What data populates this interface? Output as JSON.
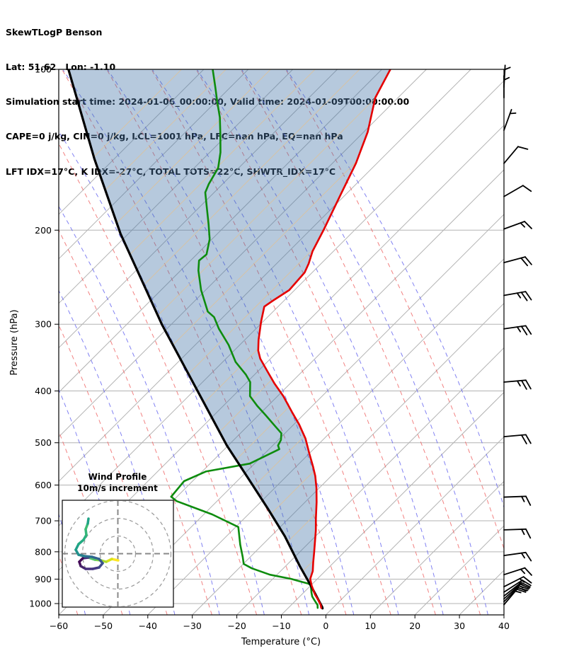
{
  "header": {
    "line1": "SkewTLogP Benson",
    "line2": "Lat: 51.62   Lon: -1.10",
    "line3": "Simulation start time: 2024-01-06_00:00:00, Valid time: 2024-01-09T00:00:00.00",
    "line4": "CAPE=0 j/kg, CIN=0 j/kg, LCL=1001 hPa, LFC=nan hPa, EQ=nan hPa",
    "line5": "LFT IDX=17°C, K IDX=-27°C, TOTAL TOTS=22°C, SHWTR_IDX=17°C"
  },
  "chart_data": {
    "type": "line",
    "variant": "skewt-logp",
    "xlabel": "Temperature (°C)",
    "ylabel": "Pressure (hPa)",
    "xlim": [
      -60,
      40
    ],
    "plim": [
      100,
      1050
    ],
    "x_ticks": [
      -60,
      -50,
      -40,
      -30,
      -20,
      -10,
      0,
      10,
      20,
      30,
      40
    ],
    "p_ticks": [
      100,
      200,
      300,
      400,
      500,
      600,
      700,
      800,
      900,
      1000
    ],
    "skew_deg": 45,
    "isotherm_step_c": 10,
    "grid": true,
    "colors": {
      "temperature": "#e50000",
      "dewpoint": "#0e8c0e",
      "parcel": "#000000",
      "fill": "#4878aa",
      "fill_opacity": 0.4,
      "isotherm": "#b3b3b3",
      "minor_isotherm_tan": "#d7c3a5",
      "dry_adiabat": "#ef6161",
      "moist_adiabat": "#6161ef",
      "barb": "#000000"
    },
    "series": [
      {
        "name": "temperature",
        "points": [
          [
            100,
            -108.1
          ],
          [
            113,
            -105.1
          ],
          [
            131,
            -99.1
          ],
          [
            150,
            -94.7
          ],
          [
            171,
            -91.2
          ],
          [
            199,
            -87.1
          ],
          [
            219,
            -84.7
          ],
          [
            231,
            -82.8
          ],
          [
            240,
            -81.7
          ],
          [
            259,
            -81.2
          ],
          [
            271,
            -82.5
          ],
          [
            278,
            -83.1
          ],
          [
            297,
            -80.4
          ],
          [
            321,
            -76.9
          ],
          [
            336,
            -74.6
          ],
          [
            348,
            -72.3
          ],
          [
            366,
            -68.2
          ],
          [
            387,
            -63.6
          ],
          [
            409,
            -58.7
          ],
          [
            438,
            -53.2
          ],
          [
            462,
            -48.8
          ],
          [
            491,
            -44.2
          ],
          [
            522,
            -40.2
          ],
          [
            555,
            -36.1
          ],
          [
            577,
            -33.6
          ],
          [
            608,
            -30.6
          ],
          [
            646,
            -27.4
          ],
          [
            693,
            -23.9
          ],
          [
            730,
            -21.2
          ],
          [
            800,
            -16.8
          ],
          [
            838,
            -14.6
          ],
          [
            869,
            -12.8
          ],
          [
            899,
            -11.6
          ],
          [
            925,
            -9.8
          ],
          [
            962,
            -7.0
          ],
          [
            984,
            -5.1
          ],
          [
            1006,
            -3.4
          ],
          [
            1019,
            -2.6
          ]
        ]
      },
      {
        "name": "dewpoint",
        "points": [
          [
            100,
            -148.0
          ],
          [
            108,
            -143.4
          ],
          [
            115,
            -139.7
          ],
          [
            123,
            -135.6
          ],
          [
            132,
            -131.8
          ],
          [
            143,
            -127.6
          ],
          [
            153,
            -124.6
          ],
          [
            164,
            -123.1
          ],
          [
            170,
            -122.0
          ],
          [
            181,
            -118.4
          ],
          [
            195,
            -114.1
          ],
          [
            208,
            -110.5
          ],
          [
            222,
            -107.8
          ],
          [
            228,
            -108.1
          ],
          [
            238,
            -106.0
          ],
          [
            259,
            -101.0
          ],
          [
            284,
            -94.7
          ],
          [
            291,
            -92.0
          ],
          [
            306,
            -88.3
          ],
          [
            328,
            -82.5
          ],
          [
            353,
            -77.1
          ],
          [
            373,
            -71.9
          ],
          [
            385,
            -69.3
          ],
          [
            409,
            -66.2
          ],
          [
            426,
            -62.5
          ],
          [
            444,
            -58.4
          ],
          [
            467,
            -53.5
          ],
          [
            480,
            -50.8
          ],
          [
            494,
            -49.4
          ],
          [
            506,
            -48.8
          ],
          [
            514,
            -47.7
          ],
          [
            547,
            -51.1
          ],
          [
            566,
            -59.2
          ],
          [
            590,
            -61.9
          ],
          [
            631,
            -61.3
          ],
          [
            643,
            -59.1
          ],
          [
            681,
            -48.1
          ],
          [
            719,
            -39.4
          ],
          [
            776,
            -35.0
          ],
          [
            818,
            -31.7
          ],
          [
            843,
            -29.9
          ],
          [
            859,
            -27.1
          ],
          [
            883,
            -21.6
          ],
          [
            899,
            -15.9
          ],
          [
            910,
            -13.0
          ],
          [
            918,
            -10.9
          ],
          [
            925,
            -10.0
          ],
          [
            953,
            -8.3
          ],
          [
            970,
            -7.2
          ],
          [
            984,
            -6.0
          ],
          [
            1006,
            -4.1
          ],
          [
            1019,
            -3.4
          ]
        ]
      },
      {
        "name": "parcel",
        "points": [
          [
            100,
            -180.4
          ],
          [
            147,
            -154.5
          ],
          [
            203,
            -131.8
          ],
          [
            301,
            -101.9
          ],
          [
            506,
            -60.3
          ],
          [
            585,
            -47.8
          ],
          [
            662,
            -37.2
          ],
          [
            748,
            -26.9
          ],
          [
            851,
            -16.8
          ],
          [
            932,
            -9.4
          ],
          [
            1015,
            -2.6
          ],
          [
            1021,
            -2.2
          ]
        ]
      }
    ],
    "fill_between": {
      "from": "parcel",
      "to": "temperature"
    },
    "wind_barbs": {
      "units": "m/s",
      "levels": [
        {
          "p": 108,
          "speed": 5,
          "dir": 183
        },
        {
          "p": 113,
          "speed": 5,
          "dir": 180
        },
        {
          "p": 130,
          "speed": 5,
          "dir": 200
        },
        {
          "p": 150,
          "speed": 10,
          "dir": 220
        },
        {
          "p": 173,
          "speed": 10,
          "dir": 240
        },
        {
          "p": 199,
          "speed": 15,
          "dir": 250
        },
        {
          "p": 230,
          "speed": 20,
          "dir": 255
        },
        {
          "p": 265,
          "speed": 25,
          "dir": 260
        },
        {
          "p": 306,
          "speed": 25,
          "dir": 262
        },
        {
          "p": 385,
          "speed": 25,
          "dir": 265
        },
        {
          "p": 487,
          "speed": 20,
          "dir": 265
        },
        {
          "p": 632,
          "speed": 15,
          "dir": 268
        },
        {
          "p": 728,
          "speed": 15,
          "dir": 268
        },
        {
          "p": 813,
          "speed": 15,
          "dir": 262
        },
        {
          "p": 883,
          "speed": 15,
          "dir": 252
        },
        {
          "p": 930,
          "speed": 15,
          "dir": 243
        },
        {
          "p": 952,
          "speed": 18,
          "dir": 237
        },
        {
          "p": 968,
          "speed": 18,
          "dir": 232
        },
        {
          "p": 980,
          "speed": 20,
          "dir": 228
        },
        {
          "p": 992,
          "speed": 20,
          "dir": 224
        },
        {
          "p": 1005,
          "speed": 18,
          "dir": 220
        }
      ]
    },
    "inset": {
      "title": "Wind Profile",
      "subtitle": "10m/s increment",
      "ring_radii_ms": [
        10,
        20,
        30
      ],
      "trace_uv_ms": [
        [
          0.2,
          -3.8
        ],
        [
          -3.4,
          -3.0
        ],
        [
          -6.6,
          -4.6
        ],
        [
          -9.4,
          -3.8
        ],
        [
          -13.0,
          -3.4
        ],
        [
          -16.6,
          -2.2
        ],
        [
          -19.8,
          -2.6
        ],
        [
          -21.8,
          -4.6
        ],
        [
          -21.0,
          -7.0
        ],
        [
          -18.2,
          -8.6
        ],
        [
          -14.2,
          -8.6
        ],
        [
          -10.6,
          -7.8
        ],
        [
          -8.6,
          -5.4
        ],
        [
          -10.6,
          -3.0
        ],
        [
          -14.6,
          -1.8
        ],
        [
          -19.0,
          -1.4
        ],
        [
          -22.2,
          -0.6
        ],
        [
          -23.8,
          2.2
        ],
        [
          -22.2,
          5.4
        ],
        [
          -19.4,
          7.8
        ],
        [
          -17.8,
          10.6
        ],
        [
          -18.2,
          13.8
        ],
        [
          -17.0,
          17.0
        ],
        [
          -16.6,
          19.8
        ]
      ],
      "trace_colors": [
        "#fde725",
        "#d8e219",
        "#addc30",
        "#7fd34e",
        "#54c568",
        "#46327e",
        "#440a54",
        "#450c59",
        "#46246a",
        "#472f7d",
        "#453781",
        "#3f4889",
        "#39568c",
        "#32628d",
        "#2c6d8e",
        "#26818e",
        "#21918c",
        "#1fa088",
        "#24aa83",
        "#2ab07f",
        "#35b779",
        "#3dbc74",
        "#20a386"
      ]
    }
  }
}
